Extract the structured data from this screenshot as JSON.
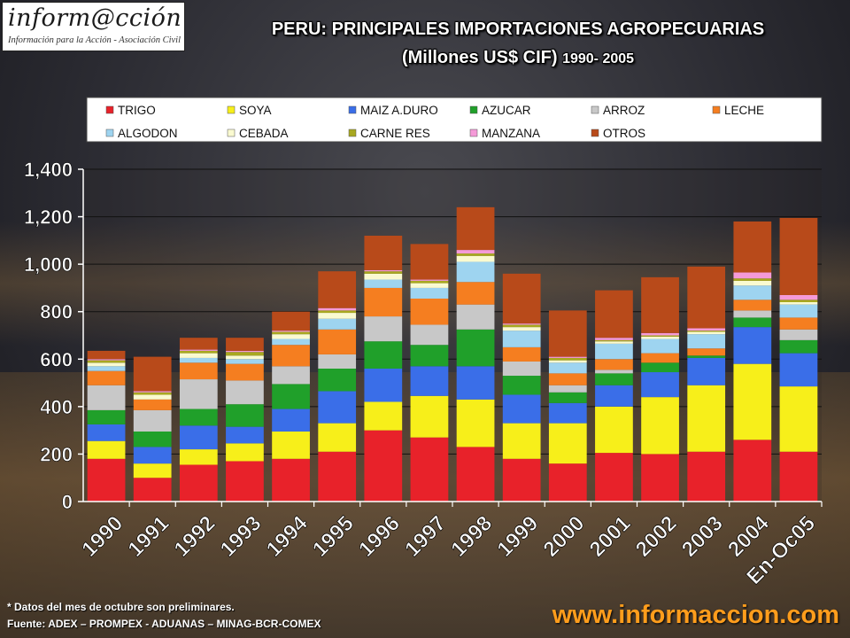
{
  "header": {
    "logo_text": "inform@cción",
    "logo_subtitle": "Información para la Acción - Asociación Civil",
    "title": "PERU: PRINCIPALES IMPORTACIONES AGROPECUARIAS",
    "subtitle_main": "(Millones US$ CIF)",
    "subtitle_years": "1990- 2005"
  },
  "footer": {
    "footnote": "* Datos del mes de octubre son preliminares.",
    "source": "Fuente: ADEX – PROMPEX - ADUANAS – MINAG-BCR-COMEX",
    "website": "www.informaccion.com"
  },
  "chart_data": {
    "type": "bar",
    "stacked": true,
    "title": "PERU: PRINCIPALES IMPORTACIONES AGROPECUARIAS",
    "ylim": [
      0,
      1400
    ],
    "yticks": [
      0,
      200,
      400,
      600,
      800,
      1000,
      1200,
      1400
    ],
    "ytick_labels": [
      "0",
      "200",
      "400",
      "600",
      "800",
      "1,000",
      "1,200",
      "1,400"
    ],
    "grid": true,
    "legend_position": "top",
    "categories": [
      "1990",
      "1991",
      "1992",
      "1993",
      "1994",
      "1995",
      "1996",
      "1997",
      "1998",
      "1999",
      "2000",
      "2001",
      "2002",
      "2003",
      "2004",
      "En-Oc05"
    ],
    "series": [
      {
        "name": "TRIGO",
        "color": "#e8222a",
        "values": [
          180,
          100,
          155,
          170,
          180,
          210,
          300,
          270,
          230,
          180,
          160,
          205,
          200,
          210,
          260,
          210
        ]
      },
      {
        "name": "SOYA",
        "color": "#f7ef1a",
        "values": [
          75,
          60,
          65,
          75,
          115,
          120,
          120,
          175,
          200,
          150,
          170,
          195,
          240,
          280,
          320,
          275
        ]
      },
      {
        "name": "MAIZ A.DURO",
        "color": "#3a6ee8",
        "values": [
          70,
          70,
          100,
          70,
          95,
          135,
          140,
          125,
          140,
          120,
          85,
          90,
          105,
          115,
          155,
          140
        ]
      },
      {
        "name": "AZUCAR",
        "color": "#20a02a",
        "values": [
          60,
          65,
          70,
          95,
          105,
          95,
          115,
          90,
          155,
          80,
          45,
          50,
          40,
          10,
          40,
          55
        ]
      },
      {
        "name": "ARROZ",
        "color": "#c8c8c8",
        "values": [
          105,
          90,
          125,
          100,
          75,
          60,
          105,
          85,
          105,
          60,
          30,
          15,
          0,
          0,
          30,
          45
        ]
      },
      {
        "name": "LECHE",
        "color": "#f57e20",
        "values": [
          60,
          45,
          70,
          70,
          90,
          105,
          120,
          110,
          95,
          60,
          50,
          45,
          40,
          30,
          45,
          50
        ]
      },
      {
        "name": "ALGODON",
        "color": "#9ed4f0",
        "values": [
          20,
          0,
          20,
          20,
          25,
          45,
          35,
          45,
          85,
          70,
          45,
          65,
          60,
          60,
          60,
          55
        ]
      },
      {
        "name": "CEBADA",
        "color": "#fafad0",
        "values": [
          15,
          20,
          20,
          15,
          20,
          25,
          25,
          20,
          25,
          15,
          10,
          10,
          10,
          10,
          20,
          10
        ]
      },
      {
        "name": "CARNE RES",
        "color": "#a8a820",
        "values": [
          10,
          10,
          10,
          15,
          10,
          10,
          10,
          10,
          10,
          10,
          10,
          5,
          5,
          5,
          10,
          10
        ]
      },
      {
        "name": "MANZANA",
        "color": "#f59ad8",
        "values": [
          5,
          5,
          5,
          5,
          5,
          10,
          5,
          5,
          15,
          5,
          5,
          10,
          10,
          10,
          25,
          20
        ]
      },
      {
        "name": "OTROS",
        "color": "#b84a1a",
        "values": [
          35,
          145,
          50,
          55,
          80,
          155,
          145,
          150,
          180,
          210,
          195,
          200,
          235,
          260,
          215,
          325
        ]
      }
    ]
  }
}
